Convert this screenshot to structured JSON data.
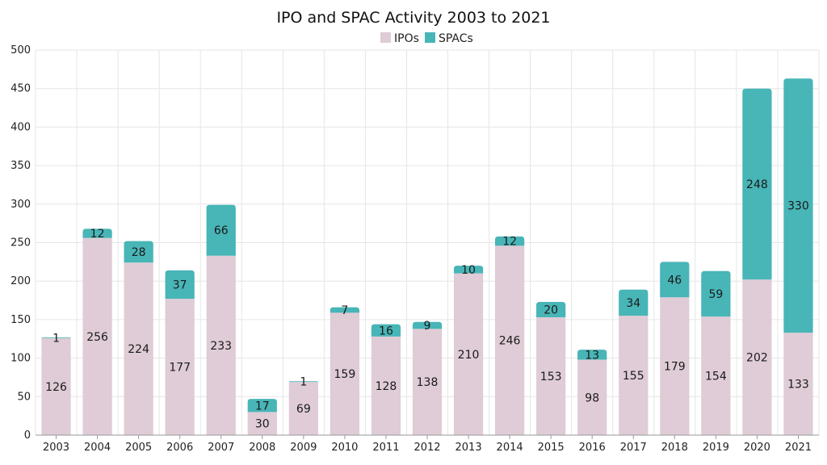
{
  "chart_data": {
    "type": "bar",
    "stacked": true,
    "title": "IPO and SPAC Activity 2003 to 2021",
    "xlabel": "",
    "ylabel": "",
    "ylim": [
      0,
      500
    ],
    "yticks": [
      0,
      50,
      100,
      150,
      200,
      250,
      300,
      350,
      400,
      450,
      500
    ],
    "grid": true,
    "legend_position": "top-center",
    "categories": [
      "2003",
      "2004",
      "2005",
      "2006",
      "2007",
      "2008",
      "2009",
      "2010",
      "2011",
      "2012",
      "2013",
      "2014",
      "2015",
      "2016",
      "2017",
      "2018",
      "2019",
      "2020",
      "2021"
    ],
    "series": [
      {
        "name": "IPOs",
        "color": "#dfccd6",
        "values": [
          126,
          256,
          224,
          177,
          233,
          30,
          69,
          159,
          128,
          138,
          210,
          246,
          153,
          98,
          155,
          179,
          154,
          202,
          133
        ]
      },
      {
        "name": "SPACs",
        "color": "#48b5b7",
        "values": [
          1,
          12,
          28,
          37,
          66,
          17,
          1,
          7,
          16,
          9,
          10,
          12,
          20,
          13,
          34,
          46,
          59,
          248,
          330
        ]
      }
    ]
  }
}
